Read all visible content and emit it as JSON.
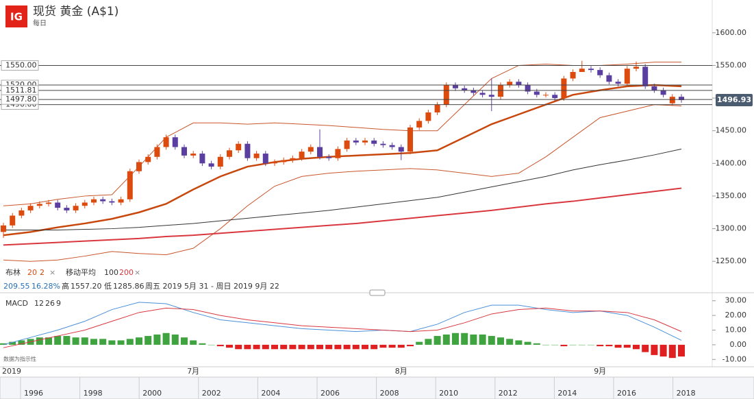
{
  "header": {
    "logo": "IG",
    "title": "现货 黄金 (A$1)",
    "subtitle": "每日"
  },
  "chart_data": [
    {
      "type": "candlestick",
      "categories": [
        "2019",
        null,
        null,
        null,
        null,
        null,
        null,
        null,
        null,
        null,
        null,
        null,
        null,
        null,
        null,
        null,
        null,
        null,
        null,
        null,
        null,
        "7月",
        null,
        null,
        null,
        null,
        null,
        null,
        null,
        null,
        null,
        null,
        null,
        null,
        null,
        null,
        null,
        null,
        null,
        null,
        null,
        null,
        null,
        null,
        "8月",
        null,
        null,
        null,
        null,
        null,
        null,
        null,
        null,
        null,
        null,
        null,
        null,
        null,
        null,
        null,
        null,
        null,
        null,
        null,
        null,
        null,
        "9月",
        null,
        null,
        null,
        null,
        null,
        null,
        null,
        null,
        null
      ],
      "open": [
        1295,
        1305,
        1320,
        1328,
        1335,
        1338,
        1340,
        1332,
        1328,
        1335,
        1340,
        1345,
        1342,
        1340,
        1345,
        1388,
        1402,
        1410,
        1425,
        1440,
        1425,
        1412,
        1415,
        1400,
        1395,
        1410,
        1420,
        1430,
        1408,
        1415,
        1400,
        1402,
        1405,
        1408,
        1418,
        1425,
        1410,
        1408,
        1422,
        1435,
        1432,
        1435,
        1430,
        1428,
        1425,
        1418,
        1455,
        1465,
        1478,
        1490,
        1520,
        1515,
        1512,
        1508,
        1505,
        1502,
        1520,
        1525,
        1520,
        1510,
        1505,
        1505,
        1500,
        1530,
        1540,
        1545,
        1543,
        1535,
        1525,
        1522,
        1545,
        1548,
        1518,
        1512,
        1492,
        1502
      ],
      "high": [
        1309,
        1324,
        1332,
        1339,
        1342,
        1344,
        1344,
        1336,
        1339,
        1344,
        1349,
        1349,
        1346,
        1349,
        1392,
        1406,
        1414,
        1429,
        1444,
        1444,
        1429,
        1419,
        1419,
        1404,
        1414,
        1424,
        1434,
        1434,
        1419,
        1419,
        1406,
        1409,
        1412,
        1422,
        1429,
        1452,
        1414,
        1426,
        1439,
        1439,
        1439,
        1439,
        1434,
        1432,
        1429,
        1459,
        1469,
        1482,
        1494,
        1524,
        1524,
        1519,
        1516,
        1512,
        1530,
        1524,
        1529,
        1529,
        1524,
        1514,
        1509,
        1509,
        1534,
        1544,
        1557.2,
        1549,
        1547,
        1539,
        1529,
        1549,
        1556,
        1552,
        1522,
        1516,
        1506,
        1506
      ],
      "low": [
        1285.86,
        1301,
        1316,
        1324,
        1331,
        1334,
        1328,
        1324,
        1324,
        1331,
        1336,
        1338,
        1336,
        1336,
        1341,
        1384,
        1398,
        1406,
        1421,
        1421,
        1408,
        1408,
        1396,
        1391,
        1391,
        1406,
        1416,
        1404,
        1404,
        1396,
        1396,
        1398,
        1401,
        1404,
        1414,
        1406,
        1404,
        1404,
        1418,
        1428,
        1428,
        1426,
        1424,
        1421,
        1405,
        1414,
        1451,
        1461,
        1474,
        1486,
        1511,
        1508,
        1504,
        1501,
        1480,
        1498,
        1516,
        1516,
        1506,
        1501,
        1501,
        1496,
        1496,
        1526,
        1541,
        1539,
        1531,
        1521,
        1518,
        1518,
        1541,
        1514,
        1508,
        1501,
        1488,
        1493
      ],
      "close": [
        1305,
        1320,
        1328,
        1335,
        1338,
        1340,
        1332,
        1328,
        1335,
        1340,
        1345,
        1342,
        1340,
        1345,
        1388,
        1402,
        1410,
        1425,
        1440,
        1425,
        1412,
        1415,
        1400,
        1395,
        1410,
        1420,
        1430,
        1408,
        1415,
        1400,
        1402,
        1405,
        1408,
        1418,
        1425,
        1410,
        1408,
        1422,
        1435,
        1432,
        1435,
        1430,
        1428,
        1425,
        1418,
        1455,
        1465,
        1478,
        1490,
        1520,
        1515,
        1512,
        1508,
        1505,
        1502,
        1520,
        1525,
        1520,
        1510,
        1505,
        1505,
        1500,
        1530,
        1540,
        1545,
        1543,
        1535,
        1525,
        1522,
        1545,
        1548,
        1518,
        1512,
        1505,
        1502,
        1496.93
      ],
      "up_color": "#dd4a0e",
      "down_color": "#5b3fa0",
      "series": [
        {
          "color": "#c9552a",
          "x": [
            0,
            3,
            6,
            9,
            12,
            15,
            18,
            21,
            24,
            27,
            30,
            33,
            36,
            39,
            42,
            45,
            48,
            51,
            54,
            57,
            60,
            63,
            66,
            69,
            72,
            75
          ],
          "values": [
            1335,
            1338,
            1345,
            1350,
            1352,
            1395,
            1440,
            1462,
            1462,
            1460,
            1462,
            1460,
            1458,
            1455,
            1452,
            1450,
            1450,
            1490,
            1530,
            1550,
            1552,
            1550,
            1550,
            1552,
            1555,
            1555
          ]
        },
        {
          "color": "#c9552a",
          "x": [
            0,
            3,
            6,
            9,
            12,
            15,
            18,
            21,
            24,
            27,
            30,
            33,
            36,
            39,
            42,
            45,
            48,
            51,
            54,
            57,
            60,
            63,
            66,
            69,
            72,
            75
          ],
          "values": [
            1252,
            1250,
            1252,
            1258,
            1265,
            1262,
            1260,
            1270,
            1300,
            1335,
            1365,
            1380,
            1385,
            1388,
            1390,
            1392,
            1390,
            1385,
            1380,
            1385,
            1410,
            1440,
            1470,
            1480,
            1490,
            1488
          ]
        },
        {
          "color": "#c8470c",
          "x": [
            0,
            3,
            6,
            9,
            12,
            15,
            18,
            21,
            24,
            27,
            30,
            33,
            36,
            39,
            42,
            45,
            48,
            51,
            54,
            57,
            60,
            63,
            66,
            69,
            72,
            75
          ],
          "values": [
            1290,
            1295,
            1302,
            1308,
            1315,
            1325,
            1338,
            1360,
            1380,
            1395,
            1402,
            1407,
            1410,
            1412,
            1414,
            1416,
            1420,
            1440,
            1460,
            1475,
            1490,
            1505,
            1512,
            1518,
            1520,
            1518
          ]
        },
        {
          "color": "#333333",
          "x": [
            0,
            3,
            6,
            9,
            12,
            15,
            18,
            21,
            24,
            27,
            30,
            33,
            36,
            39,
            42,
            45,
            48,
            51,
            54,
            57,
            60,
            63,
            66,
            69,
            72,
            75
          ],
          "values": [
            1298,
            1298,
            1298,
            1299,
            1300,
            1302,
            1305,
            1308,
            1312,
            1316,
            1320,
            1324,
            1328,
            1333,
            1338,
            1343,
            1348,
            1356,
            1364,
            1372,
            1380,
            1390,
            1398,
            1405,
            1413,
            1422
          ]
        },
        {
          "color": "#d9363e",
          "x": [
            0,
            3,
            6,
            9,
            12,
            15,
            18,
            21,
            24,
            27,
            30,
            33,
            36,
            39,
            42,
            45,
            48,
            51,
            54,
            57,
            60,
            63,
            66,
            69,
            72,
            75
          ],
          "values": [
            1275,
            1277,
            1279,
            1281,
            1283,
            1285,
            1288,
            1290,
            1293,
            1296,
            1299,
            1302,
            1305,
            1308,
            1312,
            1316,
            1320,
            1324,
            1328,
            1333,
            1338,
            1342,
            1347,
            1352,
            1357,
            1362
          ]
        }
      ],
      "ylim": [
        1225,
        1625
      ],
      "yticks": [
        {
          "value": 1250,
          "label": "1250.00"
        },
        {
          "value": 1300,
          "label": "1300.00"
        },
        {
          "value": 1350,
          "label": "1350.00"
        },
        {
          "value": 1400,
          "label": "1400.00"
        },
        {
          "value": 1450,
          "label": "1450.00"
        },
        {
          "value": 1500,
          "label": "1500.00"
        },
        {
          "value": 1550,
          "label": "1550.00"
        },
        {
          "value": 1600,
          "label": "1600.00"
        }
      ],
      "levels": [
        {
          "value": 1550,
          "label": "1550.00"
        },
        {
          "value": 1520,
          "label": "1520.00"
        },
        {
          "value": 1511.81,
          "label": "1511.81"
        },
        {
          "value": 1490,
          "label": "1490.00"
        },
        {
          "value": 1497.8,
          "label": "1497.80"
        }
      ],
      "indicators": {
        "bollinger": {
          "label": "布林",
          "period": 20,
          "deviation": 2
        },
        "ma": {
          "label": "移动平均",
          "periods": [
            100,
            200
          ]
        }
      },
      "stats": {
        "change": 209.55,
        "change_pct": {
          "value": 16.28,
          "label": "16.28%"
        },
        "high_label": "高",
        "high": {
          "value": 1557.2,
          "label": "1557.20"
        },
        "low_label": "低",
        "low": 1285.86,
        "range": "周五 2019 5月 31 - 周日 2019 9月 22"
      }
    },
    {
      "type": "macd",
      "title": "MACD",
      "params": [
        12,
        26,
        9
      ],
      "x": [
        0,
        3,
        6,
        9,
        12,
        15,
        18,
        21,
        24,
        27,
        30,
        33,
        36,
        39,
        42,
        45,
        48,
        51,
        54,
        57,
        60,
        63,
        66,
        69,
        72,
        75
      ],
      "macd": [
        0,
        5,
        10,
        16,
        24,
        29,
        28,
        22,
        17,
        15,
        13,
        11,
        10,
        9,
        10,
        9,
        14,
        22,
        27,
        27,
        24,
        22,
        23,
        20,
        12,
        3
      ],
      "signal": [
        -2,
        2,
        6,
        10,
        16,
        22,
        25,
        24,
        20,
        17,
        15,
        13,
        12,
        11,
        10,
        9,
        10,
        15,
        21,
        24,
        25,
        23,
        23,
        22,
        17,
        9
      ],
      "histogram": [
        1,
        2,
        3,
        4,
        5,
        5,
        6,
        6,
        5,
        5,
        4,
        4,
        3,
        3,
        4,
        5,
        6,
        7,
        8,
        7,
        5,
        3,
        1,
        0,
        -1,
        -2,
        -3,
        -3,
        -3,
        -3,
        -3,
        -3,
        -3,
        -3,
        -3,
        -3,
        -3,
        -3,
        -3,
        -3,
        -3,
        -3,
        -2,
        -2,
        -2,
        -1,
        2,
        4,
        6,
        7,
        8,
        8,
        7,
        7,
        6,
        5,
        4,
        3,
        2,
        1,
        0,
        0,
        -1,
        0,
        0,
        0,
        -1,
        -1,
        -2,
        -2,
        -3,
        -5,
        -7,
        -8,
        -9,
        -8
      ],
      "macd_color": "#4a90d9",
      "signal_color": "#d9363e",
      "up_color": "#3fa33f",
      "down_color": "#e02020",
      "ylim": [
        -15,
        35
      ],
      "yticks": [
        {
          "value": -10,
          "label": "-10.00"
        },
        {
          "value": 0,
          "label": "0.00"
        },
        {
          "value": 10,
          "label": "10.00"
        },
        {
          "value": 20,
          "label": "20.00"
        },
        {
          "value": 30,
          "label": "30.00"
        }
      ],
      "note": "数据为指示性"
    }
  ],
  "navigator": {
    "years": [
      1996,
      1998,
      2000,
      2002,
      2004,
      2006,
      2008,
      2010,
      2012,
      2014,
      2016,
      2018
    ]
  }
}
